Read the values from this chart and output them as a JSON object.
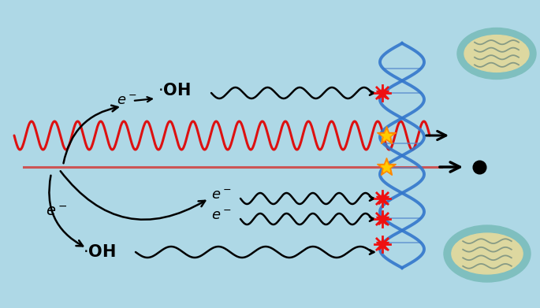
{
  "bg_color": "#aed8e6",
  "fig_width": 6.85,
  "fig_height": 3.91,
  "dpi": 100,
  "wave_color": "#dd1111",
  "line_color": "#cc5555",
  "black": "#111111",
  "blue_dna": "#3377cc",
  "orange_star": "#ff8800",
  "gold_star": "#ffcc00",
  "mito_outer": "#7fbfbf",
  "mito_inner": "#ddd8a0",
  "red_burst": "#ee1111"
}
